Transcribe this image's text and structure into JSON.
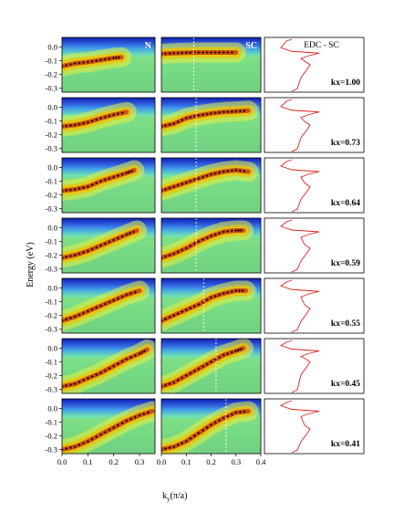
{
  "chart_data": {
    "type": "heatmap",
    "ylabel": "Energy (eV)",
    "xlabel": "k",
    "xlabel_sub": "y",
    "xlabel_unit": "(π/a)",
    "panel_labels": {
      "normal": "N",
      "superconducting": "SC",
      "edc": "EDC - SC"
    },
    "ylim": [
      -0.33,
      0.07
    ],
    "yticks": [
      "0.0",
      "-0.1",
      "-0.2",
      "-0.3"
    ],
    "xticks_left": [
      "0.0",
      "0.1",
      "0.2",
      "0.3"
    ],
    "xticks_mid": [
      "0.0",
      "0.1",
      "0.2",
      "0.3",
      "0.4"
    ],
    "xlim_left": [
      0.0,
      0.36
    ],
    "xlim_mid": [
      0.0,
      0.4
    ],
    "colors": {
      "band_high": "#d02000",
      "band_mid": "#f0c000",
      "background": "#60d8b0",
      "occupied_top": "#2030c0",
      "edc_line": "#e02020"
    },
    "rows": [
      {
        "kx_label": "kx=1.00",
        "kf": 0.13,
        "n_dispersion": {
          "x": [
            0.0,
            0.05,
            0.1,
            0.15,
            0.2,
            0.23
          ],
          "y": [
            -0.14,
            -0.12,
            -0.11,
            -0.095,
            -0.08,
            -0.075
          ]
        },
        "sc_dispersion": {
          "x": [
            0.0,
            0.05,
            0.1,
            0.15,
            0.2,
            0.25,
            0.3
          ],
          "y": [
            -0.05,
            -0.045,
            -0.042,
            -0.04,
            -0.04,
            -0.04,
            -0.04
          ]
        },
        "edc": {
          "peak_energy": -0.045,
          "hump_energy": -0.13
        }
      },
      {
        "kx_label": "kx=0.73",
        "kf": 0.14,
        "n_dispersion": {
          "x": [
            0.0,
            0.05,
            0.1,
            0.15,
            0.2,
            0.25
          ],
          "y": [
            -0.14,
            -0.13,
            -0.11,
            -0.08,
            -0.055,
            -0.035
          ]
        },
        "sc_dispersion": {
          "x": [
            0.0,
            0.05,
            0.1,
            0.15,
            0.2,
            0.25,
            0.3,
            0.35
          ],
          "y": [
            -0.14,
            -0.12,
            -0.08,
            -0.06,
            -0.045,
            -0.035,
            -0.03,
            -0.025
          ]
        },
        "edc": {
          "peak_energy": -0.035,
          "hump_energy": -0.13
        }
      },
      {
        "kx_label": "kx=0.64",
        "kf": 0.14,
        "n_dispersion": {
          "x": [
            0.0,
            0.05,
            0.1,
            0.15,
            0.2,
            0.25,
            0.28
          ],
          "y": [
            -0.17,
            -0.16,
            -0.14,
            -0.1,
            -0.07,
            -0.04,
            -0.02
          ]
        },
        "sc_dispersion": {
          "x": [
            0.0,
            0.05,
            0.1,
            0.15,
            0.2,
            0.25,
            0.3,
            0.35
          ],
          "y": [
            -0.17,
            -0.14,
            -0.11,
            -0.08,
            -0.05,
            -0.03,
            -0.02,
            -0.03
          ]
        },
        "edc": {
          "peak_energy": -0.03,
          "hump_energy": -0.14
        }
      },
      {
        "kx_label": "kx=0.59",
        "kf": 0.14,
        "n_dispersion": {
          "x": [
            0.0,
            0.05,
            0.1,
            0.15,
            0.2,
            0.25,
            0.29
          ],
          "y": [
            -0.22,
            -0.2,
            -0.17,
            -0.13,
            -0.09,
            -0.05,
            -0.02
          ]
        },
        "sc_dispersion": {
          "x": [
            0.0,
            0.05,
            0.1,
            0.15,
            0.2,
            0.25,
            0.3,
            0.33
          ],
          "y": [
            -0.22,
            -0.19,
            -0.15,
            -0.1,
            -0.06,
            -0.03,
            -0.02,
            -0.02
          ]
        },
        "edc": {
          "peak_energy": -0.03,
          "hump_energy": -0.15
        }
      },
      {
        "kx_label": "kx=0.55",
        "kf": 0.17,
        "n_dispersion": {
          "x": [
            0.0,
            0.05,
            0.1,
            0.15,
            0.2,
            0.25,
            0.3
          ],
          "y": [
            -0.24,
            -0.21,
            -0.17,
            -0.13,
            -0.09,
            -0.05,
            -0.02
          ]
        },
        "sc_dispersion": {
          "x": [
            0.0,
            0.05,
            0.1,
            0.15,
            0.2,
            0.25,
            0.3,
            0.34
          ],
          "y": [
            -0.24,
            -0.2,
            -0.16,
            -0.12,
            -0.07,
            -0.04,
            -0.02,
            -0.02
          ]
        },
        "edc": {
          "peak_energy": -0.025,
          "hump_energy": -0.15
        }
      },
      {
        "kx_label": "kx=0.45",
        "kf": 0.22,
        "n_dispersion": {
          "x": [
            0.0,
            0.05,
            0.1,
            0.15,
            0.2,
            0.25,
            0.3,
            0.33
          ],
          "y": [
            -0.28,
            -0.26,
            -0.22,
            -0.18,
            -0.13,
            -0.08,
            -0.04,
            -0.01
          ]
        },
        "sc_dispersion": {
          "x": [
            0.0,
            0.05,
            0.1,
            0.15,
            0.2,
            0.25,
            0.3,
            0.33
          ],
          "y": [
            -0.28,
            -0.25,
            -0.2,
            -0.15,
            -0.1,
            -0.05,
            -0.02,
            0.0
          ]
        },
        "edc": {
          "peak_energy": -0.02,
          "hump_energy": -0.1
        }
      },
      {
        "kx_label": "kx=0.41",
        "kf": 0.26,
        "n_dispersion": {
          "x": [
            0.0,
            0.05,
            0.1,
            0.15,
            0.2,
            0.25,
            0.3,
            0.35
          ],
          "y": [
            -0.3,
            -0.28,
            -0.24,
            -0.19,
            -0.14,
            -0.09,
            -0.05,
            -0.02
          ]
        },
        "sc_dispersion": {
          "x": [
            0.0,
            0.05,
            0.1,
            0.15,
            0.2,
            0.25,
            0.3,
            0.35
          ],
          "y": [
            -0.3,
            -0.28,
            -0.24,
            -0.18,
            -0.12,
            -0.07,
            -0.03,
            -0.02
          ]
        },
        "edc": {
          "peak_energy": -0.02,
          "hump_energy": -0.15
        }
      }
    ]
  }
}
